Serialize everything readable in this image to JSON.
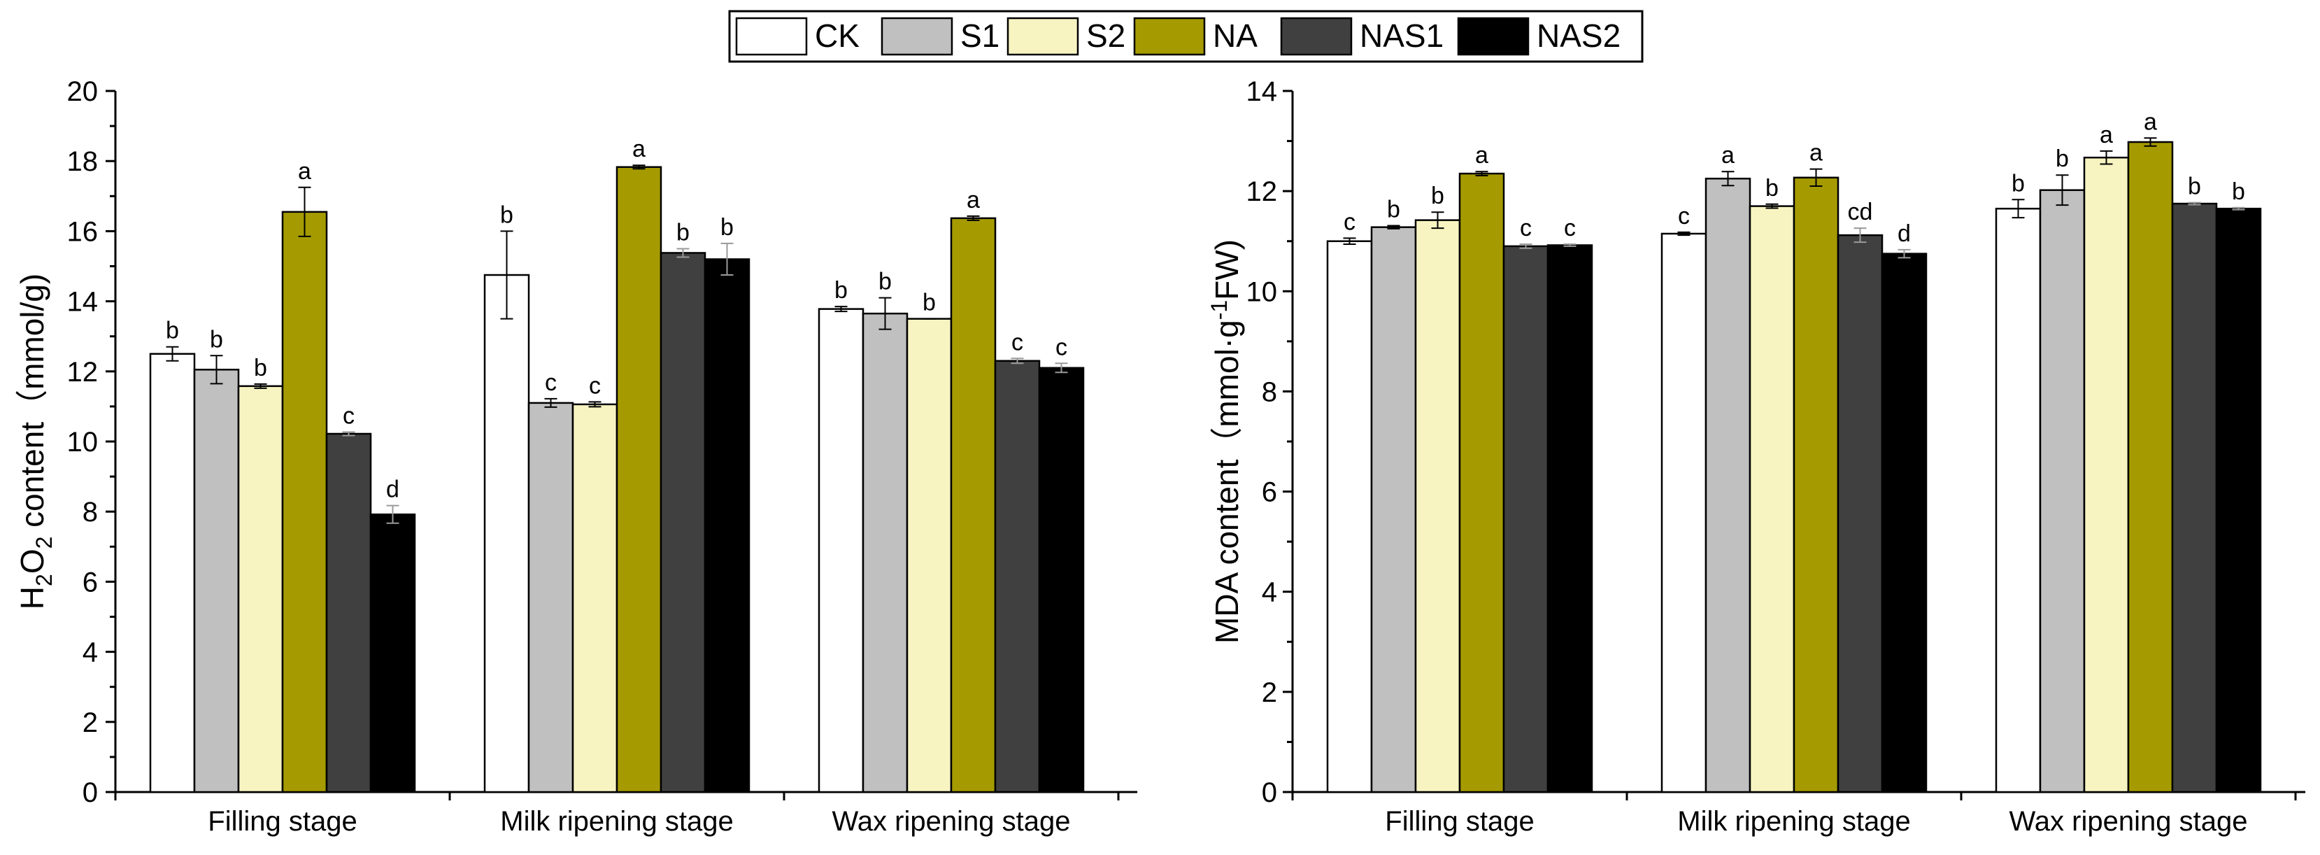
{
  "legend": {
    "entries": [
      {
        "name": "CK",
        "color": "#ffffff"
      },
      {
        "name": "S1",
        "color": "#c0c0c0"
      },
      {
        "name": "S2",
        "color": "#f7f4c2"
      },
      {
        "name": "NA",
        "color": "#a59b00"
      },
      {
        "name": "NAS1",
        "color": "#404040"
      },
      {
        "name": "NAS2",
        "color": "#000000"
      }
    ]
  },
  "chart_data": [
    {
      "type": "bar",
      "title": "",
      "ylabel_parts": {
        "prefix": "H",
        "sub1": "2",
        "mid": "O",
        "sub2": "2",
        "suffix": " content（mmol/g)"
      },
      "xlabel": "",
      "ylim": [
        0,
        20
      ],
      "ytick_step": 2,
      "categories": [
        "Filling stage",
        "Milk ripening stage",
        "Wax ripening stage"
      ],
      "series": [
        {
          "name": "CK",
          "values": [
            12.5,
            14.75,
            13.78
          ],
          "errors": [
            0.2,
            1.25,
            0.07
          ],
          "letters": [
            "b",
            "b",
            "b"
          ]
        },
        {
          "name": "S1",
          "values": [
            12.05,
            11.1,
            13.65
          ],
          "errors": [
            0.4,
            0.12,
            0.45
          ],
          "letters": [
            "b",
            "c",
            "b"
          ]
        },
        {
          "name": "S2",
          "values": [
            11.58,
            11.06,
            13.5
          ],
          "errors": [
            0.06,
            0.07,
            0.0
          ],
          "letters": [
            "b",
            "c",
            "b"
          ]
        },
        {
          "name": "NA",
          "values": [
            16.55,
            17.83,
            16.37
          ],
          "errors": [
            0.7,
            0.05,
            0.06
          ],
          "letters": [
            "a",
            "a",
            "a"
          ]
        },
        {
          "name": "NAS1",
          "values": [
            10.22,
            15.38,
            12.3
          ],
          "errors": [
            0.05,
            0.12,
            0.07
          ],
          "letters": [
            "c",
            "b",
            "c"
          ]
        },
        {
          "name": "NAS2",
          "values": [
            7.92,
            15.2,
            12.1
          ],
          "errors": [
            0.25,
            0.45,
            0.13
          ],
          "letters": [
            "d",
            "b",
            "c"
          ]
        }
      ]
    },
    {
      "type": "bar",
      "title": "",
      "ylabel_parts": {
        "prefix": "MDA content（mmol·g",
        "sup": "-1",
        "suffix": "FW)"
      },
      "xlabel": "",
      "ylim": [
        0,
        14
      ],
      "ytick_step": 2,
      "categories": [
        "Filling stage",
        "Milk ripening stage",
        "Wax ripening stage"
      ],
      "series": [
        {
          "name": "CK",
          "values": [
            11.0,
            11.15,
            11.65
          ],
          "errors": [
            0.06,
            0.03,
            0.18
          ],
          "letters": [
            "c",
            "c",
            "b"
          ]
        },
        {
          "name": "S1",
          "values": [
            11.28,
            12.25,
            12.02
          ],
          "errors": [
            0.03,
            0.14,
            0.3
          ],
          "letters": [
            "b",
            "a",
            "b"
          ]
        },
        {
          "name": "S2",
          "values": [
            11.42,
            11.7,
            12.67
          ],
          "errors": [
            0.16,
            0.04,
            0.13
          ],
          "letters": [
            "b",
            "b",
            "a"
          ]
        },
        {
          "name": "NA",
          "values": [
            12.35,
            12.27,
            12.98
          ],
          "errors": [
            0.04,
            0.17,
            0.08
          ],
          "letters": [
            "a",
            "a",
            "a"
          ]
        },
        {
          "name": "NAS1",
          "values": [
            10.9,
            11.12,
            11.75
          ],
          "errors": [
            0.04,
            0.14,
            0.02
          ],
          "letters": [
            "c",
            "cd",
            "b"
          ]
        },
        {
          "name": "NAS2",
          "values": [
            10.92,
            10.75,
            11.65
          ],
          "errors": [
            0.02,
            0.08,
            0.02
          ],
          "letters": [
            "c",
            "d",
            "b"
          ]
        }
      ]
    }
  ]
}
